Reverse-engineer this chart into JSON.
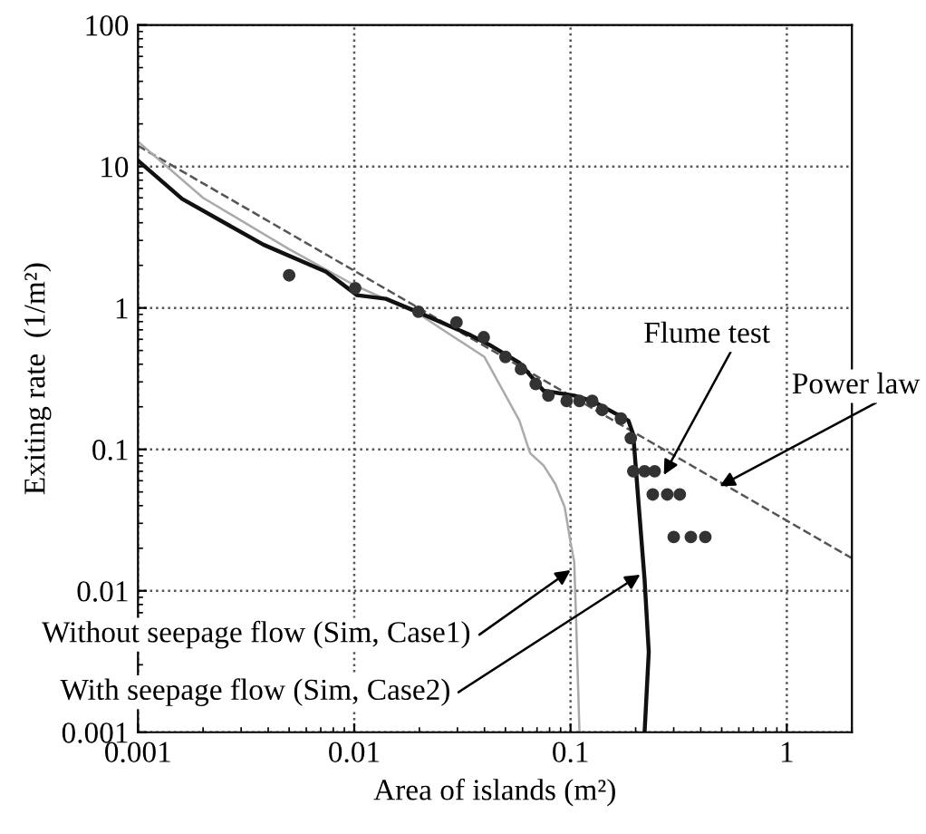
{
  "chart_data": {
    "type": "line",
    "xlabel": "Area of islands (m²)",
    "ylabel": "Exiting rate  (1/m²)",
    "log": "xy",
    "xlim": [
      0.001,
      2
    ],
    "ylim": [
      0.001,
      100
    ],
    "xticks": [
      0.001,
      0.01,
      0.1,
      1
    ],
    "yticks": [
      0.001,
      0.01,
      0.1,
      1,
      10,
      100
    ],
    "grid": true,
    "legend": false,
    "series": [
      {
        "color": "#555555",
        "line_style": "dashed",
        "x": [
          0.001,
          2
        ],
        "values": [
          14,
          0.017
        ]
      },
      {
        "color": "#aaaaaa",
        "x": [
          0.001,
          0.002,
          0.005,
          0.01,
          0.02,
          0.04,
          0.058,
          0.065,
          0.075,
          0.085,
          0.094,
          0.1,
          0.104,
          0.106,
          0.11
        ],
        "values": [
          15,
          6,
          2.6,
          1.45,
          0.9,
          0.45,
          0.16,
          0.094,
          0.077,
          0.057,
          0.039,
          0.022,
          0.016,
          0.0066,
          0.001
        ]
      },
      {
        "color": "#111111",
        "x": [
          0.001,
          0.0016,
          0.0038,
          0.0074,
          0.0103,
          0.014,
          0.0195,
          0.0346,
          0.042,
          0.058,
          0.075,
          0.104,
          0.126,
          0.185,
          0.195,
          0.207,
          0.22,
          0.23,
          0.22
        ],
        "values": [
          11,
          5.9,
          2.8,
          1.8,
          1.23,
          1.16,
          0.94,
          0.64,
          0.55,
          0.41,
          0.26,
          0.24,
          0.22,
          0.16,
          0.127,
          0.039,
          0.012,
          0.0037,
          0.001
        ]
      },
      {
        "type": "scatter",
        "color": "#333333",
        "marker": "circle",
        "x": [
          0.005,
          0.0101,
          0.0198,
          0.0297,
          0.0397,
          0.05,
          0.059,
          0.069,
          0.079,
          0.096,
          0.11,
          0.126,
          0.14,
          0.171,
          0.19,
          0.195,
          0.22,
          0.245,
          0.24,
          0.28,
          0.32,
          0.3,
          0.36,
          0.42
        ],
        "values": [
          1.7,
          1.38,
          0.94,
          0.79,
          0.62,
          0.45,
          0.37,
          0.29,
          0.24,
          0.22,
          0.22,
          0.22,
          0.19,
          0.165,
          0.12,
          0.07,
          0.07,
          0.07,
          0.048,
          0.048,
          0.048,
          0.024,
          0.024,
          0.024
        ]
      }
    ],
    "annotations": [
      {
        "text": "Flume test",
        "x": 0.27,
        "y": 0.066
      },
      {
        "text": "Power law",
        "x": 0.49,
        "y": 0.055
      },
      {
        "text": "Without seepage flow (Sim, Case1)",
        "x": 0.1,
        "y": 0.014
      },
      {
        "text": "With seepage flow (Sim, Case2)",
        "x": 0.21,
        "y": 0.013
      }
    ]
  }
}
